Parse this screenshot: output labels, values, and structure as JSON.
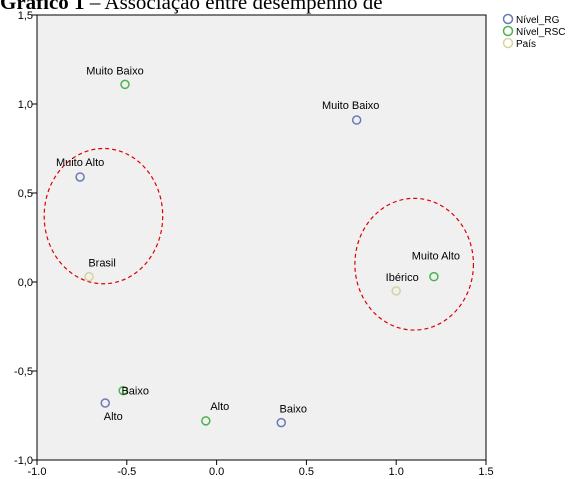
{
  "chart_data": {
    "type": "scatter",
    "title_bold": "Gráfico 1",
    "title_rest": " – Associação entre desempenho de",
    "xlim": [
      -1.0,
      1.5
    ],
    "ylim": [
      -1.0,
      1.5
    ],
    "x_ticks": [
      "-1.0",
      "-0.5",
      "0.0",
      "0.5",
      "1.0",
      "1.5"
    ],
    "y_ticks": [
      "-1,0",
      "-0,5",
      "0,0",
      "0,5",
      "1,0",
      "1,5"
    ],
    "grid": false,
    "legend_position": "top-right",
    "series": [
      {
        "name": "Nível_RG",
        "color": "#6b78b8",
        "points": [
          {
            "x": -0.76,
            "y": 0.59,
            "label": "Muito Alto"
          },
          {
            "x": 0.78,
            "y": 0.91,
            "label": "Muito Baixo"
          },
          {
            "x": -0.62,
            "y": -0.68,
            "label": "Alto"
          },
          {
            "x": 0.36,
            "y": -0.79,
            "label": "Baixo"
          }
        ]
      },
      {
        "name": "Nível_RSC",
        "color": "#4cb34c",
        "points": [
          {
            "x": -0.51,
            "y": 1.11,
            "label": "Muito Baixo"
          },
          {
            "x": 1.21,
            "y": 0.03,
            "label": "Muito Alto"
          },
          {
            "x": -0.52,
            "y": -0.61,
            "label": "Baixo"
          },
          {
            "x": -0.06,
            "y": -0.78,
            "label": "Alto"
          }
        ]
      },
      {
        "name": "País",
        "color": "#d6d49a",
        "points": [
          {
            "x": -0.71,
            "y": 0.03,
            "label": "Brasil"
          },
          {
            "x": 1.0,
            "y": -0.05,
            "label": "Ibérico"
          }
        ]
      }
    ],
    "annotations": [
      {
        "type": "dashed-ellipse",
        "cx": -0.63,
        "cy": 0.37,
        "rx": 0.33,
        "ry": 0.38,
        "color": "#dd0000"
      },
      {
        "type": "dashed-ellipse",
        "cx": 1.1,
        "cy": 0.1,
        "rx": 0.33,
        "ry": 0.37,
        "color": "#dd0000"
      }
    ]
  }
}
